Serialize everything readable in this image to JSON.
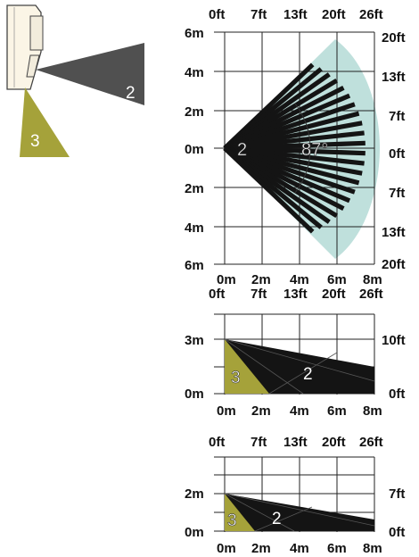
{
  "detector": {
    "zone_labels": {
      "long_range": "2",
      "creep": "3"
    }
  },
  "top_view": {
    "top_ft": [
      "0ft",
      "7ft",
      "13ft",
      "20ft",
      "26ft"
    ],
    "left_m": [
      "6m",
      "4m",
      "2m",
      "0m",
      "2m",
      "4m",
      "6m"
    ],
    "right_ft": [
      "20ft",
      "13ft",
      "7ft",
      "0ft",
      "7ft",
      "13ft",
      "20ft"
    ],
    "bottom_m": [
      "0m",
      "2m",
      "4m",
      "6m",
      "8m"
    ],
    "zone_label": "2",
    "angle_label": "87°"
  },
  "side_view_1": {
    "top_ft": [
      "0ft",
      "7ft",
      "13ft",
      "20ft",
      "26ft"
    ],
    "left_m": [
      "3m",
      "0m"
    ],
    "right_ft": [
      "10ft",
      "0ft"
    ],
    "bottom_m": [
      "0m",
      "2m",
      "4m",
      "6m",
      "8m"
    ],
    "zone_labels": {
      "creep": "3",
      "long_range": "2"
    }
  },
  "side_view_2": {
    "top_ft": [
      "0ft",
      "7ft",
      "13ft",
      "20ft",
      "26ft"
    ],
    "left_m": [
      "2m",
      "0m"
    ],
    "right_ft": [
      "7ft",
      "0ft"
    ],
    "bottom_m": [
      "0m",
      "2m",
      "4m",
      "6m",
      "8m"
    ],
    "zone_labels": {
      "creep": "3",
      "long_range": "2"
    }
  },
  "colors": {
    "zone2_dark": "#141414",
    "zone2_grey": "#505050",
    "zone3_olive": "#a5a23a",
    "coverage_area": "#bfe0dc",
    "detector_body": "#fbf5e6"
  }
}
